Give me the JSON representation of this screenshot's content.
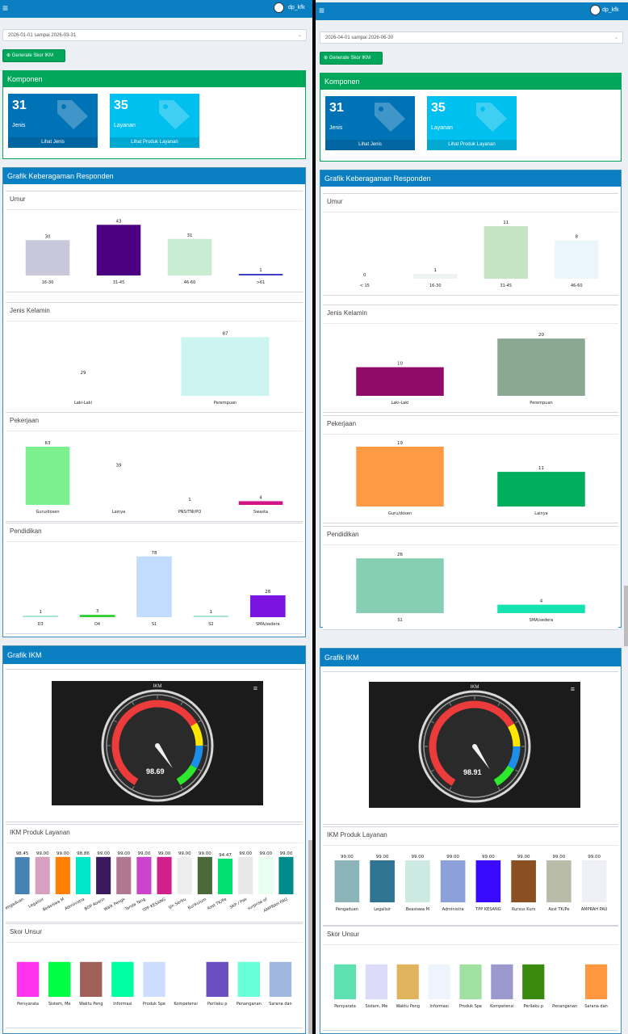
{
  "panels": [
    {
      "username": "dp_kfk",
      "date_range": "2026-01-01 sampai 2026-03-31",
      "generate_label": "Generate Skor IKM",
      "komponen_title": "Komponen",
      "tiles": [
        {
          "value": "31",
          "label": "Jenis",
          "footer": "Lihat Jenis",
          "color": "#0073b7"
        },
        {
          "value": "35",
          "label": "Layanan",
          "footer": "Lihat Produk Layanan",
          "color": "#00c0ef"
        }
      ],
      "keragaman_title": "Grafik Keberagaman Responden",
      "grafik_ikm_title": "Grafik IKM",
      "umur": {
        "title": "Umur",
        "chart_data": {
          "type": "bar",
          "categories": [
            "16-30",
            "31-45",
            "46-60",
            ">61"
          ],
          "values": [
            30,
            43,
            31,
            1
          ],
          "colors": [
            "#c8c8da",
            "#4b0082",
            "#c8ecd2",
            "#4040c8"
          ],
          "ylim": [
            0,
            48
          ],
          "rotate": false
        }
      },
      "jenis_kelamin": {
        "title": "Jenis Kelamin",
        "chart_data": {
          "type": "bar",
          "categories": [
            "Laki-Laki",
            "Perempuan"
          ],
          "values": [
            29,
            87
          ],
          "colors": [
            "#ffffff",
            "#ccf5f2"
          ],
          "ylim": [
            0,
            97
          ],
          "rotate": false
        }
      },
      "pekerjaan": {
        "title": "Pekerjaan",
        "chart_data": {
          "type": "bar",
          "categories": [
            "Guru/dosen",
            "Lainya",
            "PNS/TNI/PO",
            "Swasta"
          ],
          "values": [
            63,
            39,
            1,
            4
          ],
          "colors": [
            "#7cf08c",
            "#ffffff",
            "#ffffff",
            "#d21487"
          ],
          "ylim": [
            0,
            70
          ],
          "rotate": false
        }
      },
      "pendidikan": {
        "title": "Pendidikan",
        "chart_data": {
          "type": "bar",
          "categories": [
            "D3",
            "D4",
            "S1",
            "S2",
            "SMA/sedera"
          ],
          "values": [
            1,
            3,
            78,
            1,
            28
          ],
          "colors": [
            "#a8e6d0",
            "#32cd32",
            "#c2dcff",
            "#a8e6d0",
            "#7b14e0"
          ],
          "ylim": [
            0,
            85
          ],
          "rotate": false
        }
      },
      "ikm": {
        "title": "IKM",
        "chart_data": {
          "type": "gauge",
          "value": 98.69,
          "min": 0,
          "max": 100,
          "display": "98.69"
        }
      },
      "produk": {
        "title": "IKM Produk Layanan",
        "chart_data": {
          "type": "bar",
          "categories": [
            "Pengaduan",
            "Legalisir",
            "Beasiswa M",
            "Administra",
            "BOP Koorin",
            "Walk Pengk",
            "Tanda Tang",
            "TPP KESANG",
            "Ijin Serbu",
            "Kurikulum",
            "Asst TK/Pe",
            "SKP / Pak",
            "surprise of",
            "AMPRAH PAU"
          ],
          "values": [
            98.45,
            99.0,
            99.0,
            98.86,
            99.0,
            99.0,
            99.0,
            99.0,
            99.0,
            99.0,
            94.47,
            99.0,
            99.0,
            99.0
          ],
          "value_labels": [
            "98.45",
            "99.00",
            "99.00",
            "98.86",
            "99.00",
            "99.00",
            "99.00",
            "99.00",
            "99.00",
            "99.00",
            "94.47",
            "99.00",
            "99.00",
            "99.00"
          ],
          "colors": [
            "#4682b4",
            "#d8a0c0",
            "#ff7f00",
            "#00e6c8",
            "#3a1a5a",
            "#b07890",
            "#cc44cc",
            "#d0208c",
            "#eeeeee",
            "#4a6a3a",
            "#00e070",
            "#e8e8e8",
            "#e8fff0",
            "#008b8b"
          ],
          "ylim": [
            0,
            120
          ],
          "rotate": true
        }
      },
      "skor": {
        "title": "Skor Unsur",
        "chart_data": {
          "type": "bar",
          "categories": [
            "Persyarata",
            "Sistem, Me",
            "Waktu Peng",
            "Informasi",
            "Produk Spe",
            "Kompetensi",
            "Perilaku p",
            "Penanganan",
            "Sarana dan"
          ],
          "values": [
            80,
            80,
            80,
            80,
            80,
            0,
            80,
            80,
            80
          ],
          "colors": [
            "#ff33ee",
            "#00ff44",
            "#a0605a",
            "#00ffa0",
            "#ccddff",
            "#ffffff",
            "#6a4ec0",
            "#66ffd8",
            "#a0b8e0"
          ],
          "ylim": [
            0,
            100
          ],
          "rotate": false,
          "hide_values": true
        }
      }
    },
    {
      "username": "dp_kfk",
      "date_range": "2026-04-01 sampai 2026-06-30",
      "generate_label": "Generate Skor IKM",
      "komponen_title": "Komponen",
      "tiles": [
        {
          "value": "31",
          "label": "Jenis",
          "footer": "Lihat Jenis",
          "color": "#0073b7"
        },
        {
          "value": "35",
          "label": "Layanan",
          "footer": "Lihat Produk Layanan",
          "color": "#00c0ef"
        }
      ],
      "keragaman_title": "Grafik Keberagaman Responden",
      "grafik_ikm_title": "Grafik IKM",
      "umur": {
        "title": "Umur",
        "chart_data": {
          "type": "bar",
          "categories": [
            "< 15",
            "16-30",
            "31-45",
            "46-60"
          ],
          "values": [
            0,
            1,
            11,
            8
          ],
          "colors": [
            "#ffffff",
            "#edf3ef",
            "#c4e4c4",
            "#eaf5fc"
          ],
          "ylim": [
            0,
            12
          ],
          "rotate": false
        }
      },
      "jenis_kelamin": {
        "title": "Jenis Kelamin",
        "chart_data": {
          "type": "bar",
          "categories": [
            "Laki-Laki",
            "Perempuan"
          ],
          "values": [
            10,
            20
          ],
          "colors": [
            "#900a6a",
            "#8aa892"
          ],
          "ylim": [
            0,
            22
          ],
          "rotate": false
        }
      },
      "pekerjaan": {
        "title": "Pekerjaan",
        "chart_data": {
          "type": "bar",
          "categories": [
            "Guru/dosen",
            "Lainya"
          ],
          "values": [
            19,
            11
          ],
          "colors": [
            "#ff9a44",
            "#00ae5c"
          ],
          "ylim": [
            0,
            20
          ],
          "rotate": false
        }
      },
      "pendidikan": {
        "title": "Pendidikan",
        "chart_data": {
          "type": "bar",
          "categories": [
            "S1",
            "SMA/sedera"
          ],
          "values": [
            26,
            4
          ],
          "colors": [
            "#86cfb2",
            "#14e2b0"
          ],
          "ylim": [
            0,
            28
          ],
          "rotate": false
        }
      },
      "ikm": {
        "title": "IKM",
        "chart_data": {
          "type": "gauge",
          "value": 98.91,
          "min": 0,
          "max": 100,
          "display": "98.91"
        }
      },
      "produk": {
        "title": "IKM Produk Layanan",
        "chart_data": {
          "type": "bar",
          "categories": [
            "Pengaduan",
            "Legalisir",
            "Beasiswa M",
            "Administra",
            "TPP KESANG",
            "Kursus Kurs",
            "Asst TK/Pe",
            "AMPRAH PAU"
          ],
          "values": [
            99.0,
            99.0,
            99.0,
            99.0,
            99.0,
            99.0,
            99.0,
            99.0
          ],
          "value_labels": [
            "99.00",
            "99.00",
            "99.00",
            "99.00",
            "99.00",
            "99.00",
            "99.00",
            "99.00"
          ],
          "colors": [
            "#8ab4b8",
            "#2f7490",
            "#cdeae2",
            "#8ca0da",
            "#3a0aff",
            "#8a5022",
            "#b8bca8",
            "#eef0f6"
          ],
          "ylim": [
            0,
            120
          ],
          "rotate": false
        }
      },
      "skor": {
        "title": "Skor Unsur",
        "chart_data": {
          "type": "bar",
          "categories": [
            "Persyarata",
            "Sistem, Me",
            "Waktu Peng",
            "Informasi",
            "Produk Spe",
            "Kompetensi",
            "Perilaku p",
            "Penanganan",
            "Sarana dan"
          ],
          "values": [
            80,
            80,
            80,
            80,
            80,
            80,
            80,
            0,
            80
          ],
          "colors": [
            "#5ee0b0",
            "#dcdcf8",
            "#e0b45c",
            "#eef4fe",
            "#a0e0a0",
            "#9a98cc",
            "#3a8a10",
            "#ffffff",
            "#ff9840"
          ],
          "ylim": [
            0,
            100
          ],
          "rotate": false,
          "hide_values": true
        }
      }
    }
  ]
}
